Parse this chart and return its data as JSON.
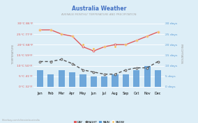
{
  "title": "Australia Weather",
  "subtitle": "AVERAGE MONTHLY TEMPERATURE AND PRECIPITATION",
  "months": [
    "Jan",
    "Feb",
    "Mar",
    "Apr",
    "May",
    "Jun",
    "Jul",
    "Aug",
    "Sep",
    "Oct",
    "Nov",
    "Dec"
  ],
  "day_temp": [
    27,
    27,
    25,
    24,
    19,
    17,
    19,
    20,
    20,
    22,
    24,
    26
  ],
  "night_temp": [
    12,
    12,
    13,
    11,
    8,
    7,
    6,
    6,
    8,
    9,
    9,
    12
  ],
  "snow_temp": [
    27,
    27,
    25,
    24,
    20,
    18,
    19,
    19,
    20,
    22,
    24,
    26
  ],
  "rain_days": [
    8,
    6,
    8,
    7,
    6,
    5,
    5,
    6,
    6,
    8,
    10,
    8
  ],
  "yticks_left": [
    [
      0,
      "0°C 32°F"
    ],
    [
      5,
      "5°C 41°F"
    ],
    [
      10,
      "10°C 50°F"
    ],
    [
      15,
      "15°C 59°F"
    ],
    [
      20,
      "20°C 68°F"
    ],
    [
      25,
      "25°C 77°F"
    ],
    [
      30,
      "30°C 86°F"
    ]
  ],
  "yticks_right": [
    [
      0,
      "0 days"
    ],
    [
      5,
      "5 days"
    ],
    [
      10,
      "10 days"
    ],
    [
      15,
      "15 days"
    ],
    [
      20,
      "20 days"
    ],
    [
      25,
      "25 days"
    ],
    [
      30,
      "30 days"
    ]
  ],
  "ylim": [
    -2,
    33
  ],
  "bar_scale": 1.0,
  "bar_color": "#5b9bd5",
  "day_color": "#e05c5c",
  "night_color": "#555555",
  "snow_color": "#f0c060",
  "background_color": "#ddeef7",
  "grid_color": "#ffffff",
  "title_color": "#4472c4",
  "subtitle_color": "#aaaaaa",
  "left_tick_color": "#e05c5c",
  "right_tick_color": "#5b9bd5",
  "left_ylabel": "TEMPERATURE",
  "right_ylabel": "PRECIPITATION",
  "watermark": "hikerbay.com/climate/australia"
}
